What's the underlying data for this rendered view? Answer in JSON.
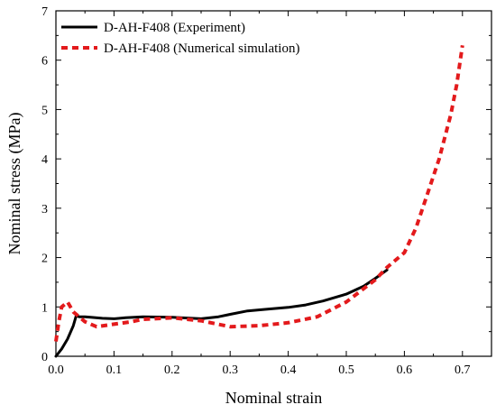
{
  "chart_data": {
    "type": "line",
    "xlabel": "Nominal strain",
    "ylabel": "Nominal stress (MPa)",
    "xlim": [
      0.0,
      0.75
    ],
    "ylim": [
      0,
      7
    ],
    "x_ticks": [
      0.0,
      0.1,
      0.2,
      0.3,
      0.4,
      0.5,
      0.6,
      0.7
    ],
    "x_tick_labels": [
      "0.0",
      "0.1",
      "0.2",
      "0.3",
      "0.4",
      "0.5",
      "0.6",
      "0.7"
    ],
    "y_ticks": [
      0,
      1,
      2,
      3,
      4,
      5,
      6,
      7
    ],
    "y_tick_labels": [
      "0",
      "1",
      "2",
      "3",
      "4",
      "5",
      "6",
      "7"
    ],
    "legend_position": "top-left",
    "series": [
      {
        "name": "D-AH-F408 (Experiment)",
        "line_style": "solid",
        "color": "#000000",
        "x": [
          0.0,
          0.01,
          0.02,
          0.03,
          0.035,
          0.04,
          0.05,
          0.06,
          0.08,
          0.1,
          0.12,
          0.15,
          0.2,
          0.25,
          0.28,
          0.3,
          0.33,
          0.36,
          0.4,
          0.43,
          0.46,
          0.5,
          0.53,
          0.55,
          0.57
        ],
        "y": [
          0.0,
          0.15,
          0.35,
          0.62,
          0.82,
          0.8,
          0.8,
          0.79,
          0.77,
          0.76,
          0.78,
          0.8,
          0.79,
          0.76,
          0.8,
          0.85,
          0.92,
          0.95,
          0.99,
          1.04,
          1.12,
          1.26,
          1.42,
          1.58,
          1.75
        ]
      },
      {
        "name": "D-AH-F408 (Numerical simulation)",
        "line_style": "dashed",
        "color": "#e31a1c",
        "x": [
          0.0,
          0.005,
          0.01,
          0.02,
          0.03,
          0.05,
          0.07,
          0.1,
          0.13,
          0.15,
          0.2,
          0.25,
          0.3,
          0.35,
          0.4,
          0.45,
          0.5,
          0.55,
          0.57,
          0.6,
          0.62,
          0.64,
          0.66,
          0.68,
          0.69,
          0.7
        ],
        "y": [
          0.3,
          0.7,
          1.0,
          1.1,
          0.9,
          0.7,
          0.6,
          0.65,
          0.7,
          0.75,
          0.78,
          0.72,
          0.6,
          0.62,
          0.68,
          0.8,
          1.1,
          1.55,
          1.8,
          2.1,
          2.6,
          3.3,
          4.0,
          4.9,
          5.5,
          6.3
        ]
      }
    ]
  }
}
